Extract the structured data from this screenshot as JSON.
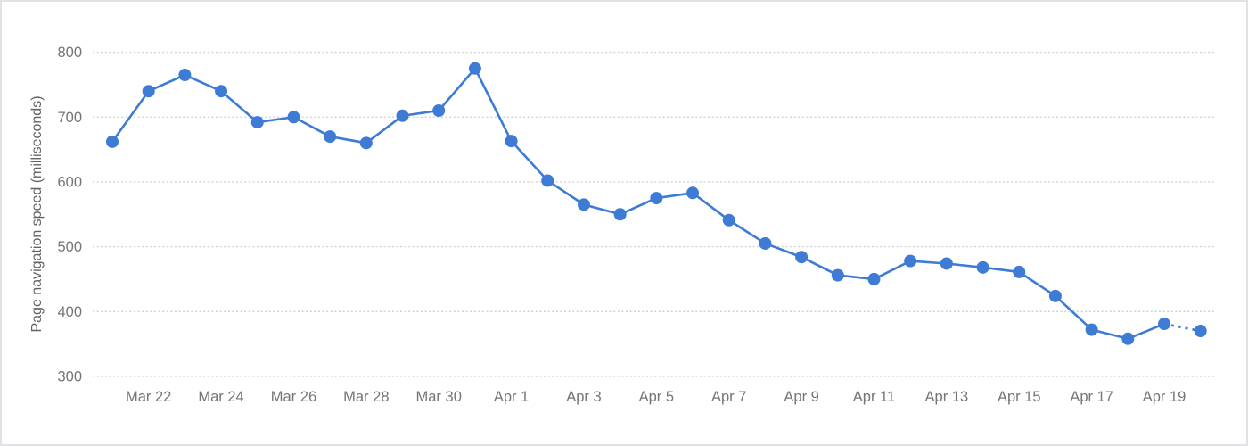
{
  "chart_data": {
    "type": "line",
    "title": "",
    "xlabel": "",
    "ylabel": "Page navigation speed (milliseconds)",
    "x": [
      "Mar 21",
      "Mar 22",
      "Mar 23",
      "Mar 24",
      "Mar 25",
      "Mar 26",
      "Mar 27",
      "Mar 28",
      "Mar 29",
      "Mar 30",
      "Mar 31",
      "Apr 1",
      "Apr 2",
      "Apr 3",
      "Apr 4",
      "Apr 5",
      "Apr 6",
      "Apr 7",
      "Apr 8",
      "Apr 9",
      "Apr 10",
      "Apr 11",
      "Apr 12",
      "Apr 13",
      "Apr 14",
      "Apr 15",
      "Apr 16",
      "Apr 17",
      "Apr 18",
      "Apr 19",
      "Apr 20"
    ],
    "values": [
      662,
      740,
      765,
      740,
      692,
      700,
      670,
      660,
      702,
      710,
      775,
      663,
      602,
      565,
      550,
      575,
      583,
      541,
      505,
      484,
      456,
      450,
      478,
      474,
      468,
      461,
      424,
      372,
      358,
      381,
      370
    ],
    "x_tick_labels": [
      "Mar 22",
      "Mar 24",
      "Mar 26",
      "Mar 28",
      "Mar 30",
      "Apr 1",
      "Apr 3",
      "Apr 5",
      "Apr 7",
      "Apr 9",
      "Apr 11",
      "Apr 13",
      "Apr 15",
      "Apr 17",
      "Apr 19"
    ],
    "y_ticks": [
      300,
      400,
      500,
      600,
      700,
      800
    ],
    "ylim": [
      300,
      800
    ],
    "grid": "horizontal-dotted",
    "legend": "none",
    "last_segment_style": "dotted-projection",
    "colors": {
      "line": "#3d7bd5",
      "marker": "#3d7bd5",
      "gridline": "#d2d2d6",
      "tick_label": "#757575",
      "axis_title": "#636363",
      "frame_border": "#e2e2e6",
      "background": "#ffffff"
    }
  }
}
